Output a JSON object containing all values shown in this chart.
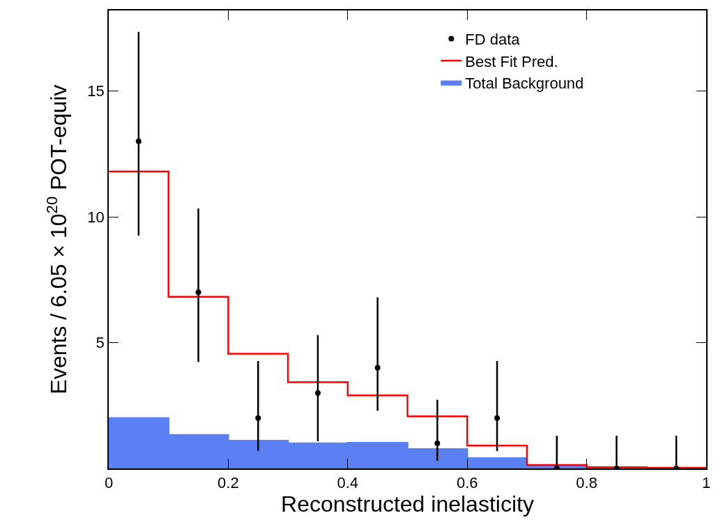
{
  "chart_data": {
    "type": "step",
    "xlabel": "Reconstructed inelasticity",
    "ylabel": "Events / 6.05 × 10$^{20}$ POT-equiv",
    "series": [
      {
        "name": "Total Background",
        "type": "area",
        "color": "#5b7ff5",
        "x": [
          0,
          0.1,
          0.2,
          0.3,
          0.4,
          0.5,
          0.6,
          0.7,
          0.8,
          0.9,
          1
        ],
        "values": [
          2.0,
          1.33,
          1.1,
          1.0,
          1.02,
          0.77,
          0.41,
          0.1,
          0.03,
          0.02,
          0.02
        ]
      },
      {
        "name": "Best Fit Pred.",
        "color": "#ff0000",
        "x": [
          0,
          0.1,
          0.2,
          0.3,
          0.4,
          0.5,
          0.6,
          0.7,
          0.8,
          0.9,
          1
        ],
        "values": [
          11.8,
          6.82,
          4.56,
          3.43,
          2.9,
          2.07,
          0.91,
          0.14,
          0.05,
          0.03,
          0.03
        ]
      },
      {
        "name": "FD data",
        "type": "scatter",
        "color": "#000000",
        "marker": "circle",
        "x": [
          0.05,
          0.15,
          0.25,
          0.35,
          0.45,
          0.55,
          0.65,
          0.75,
          0.85,
          0.95
        ],
        "values": [
          13,
          7,
          2,
          3,
          4,
          1,
          2,
          0,
          0,
          0
        ],
        "errors": [
          [
            9.25,
            17.35
          ],
          [
            4.23,
            10.33
          ],
          [
            0.7,
            4.27
          ],
          [
            1.08,
            5.3
          ],
          [
            2.29,
            6.8
          ],
          [
            0.3,
            2.73
          ],
          [
            0.69,
            4.27
          ],
          [
            0,
            1.3
          ],
          [
            0,
            1.3
          ],
          [
            0,
            1.3
          ]
        ]
      }
    ],
    "xlim": [
      0,
      1
    ],
    "xticks": [
      0,
      0.2,
      0.4,
      0.6,
      0.8,
      1
    ],
    "ylim": [
      0,
      18.2
    ],
    "yticks": [
      5,
      10,
      15
    ],
    "grid": false,
    "legend": "top right"
  }
}
